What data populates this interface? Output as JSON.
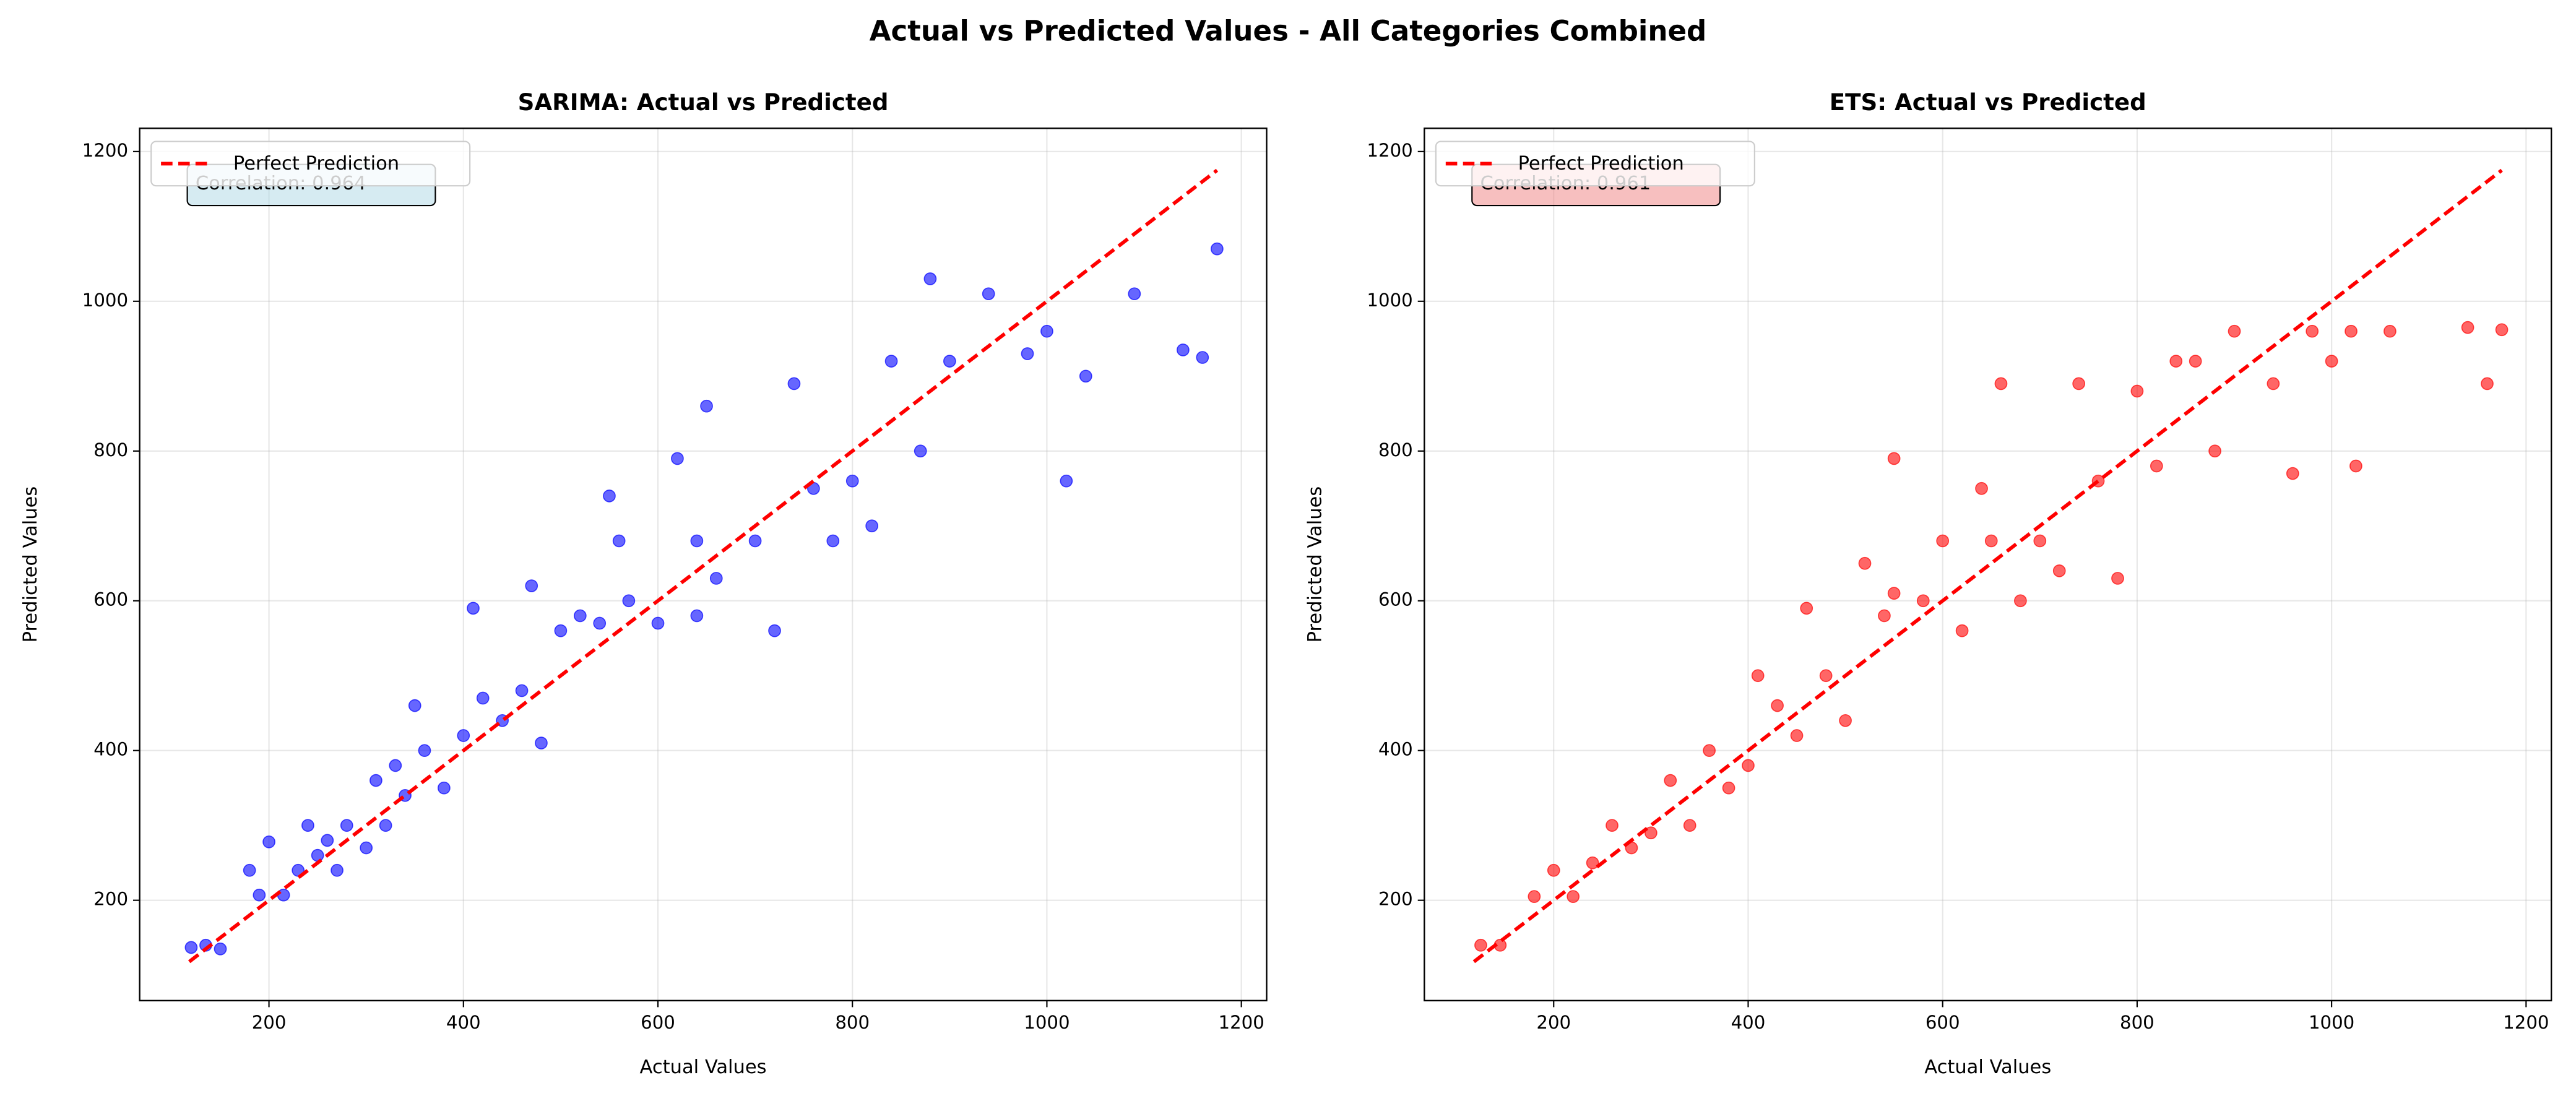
{
  "title": "Actual vs Predicted Values - All Categories Combined",
  "chart_data": [
    {
      "type": "scatter",
      "title": "SARIMA: Actual vs Predicted",
      "xlabel": "Actual Values",
      "ylabel": "Predicted Values",
      "xlim": [
        67,
        1226
      ],
      "ylim": [
        66,
        1231
      ],
      "xticks": [
        200,
        400,
        600,
        800,
        1000,
        1200
      ],
      "yticks": [
        200,
        400,
        600,
        800,
        1000,
        1200
      ],
      "grid": true,
      "legend": "upper left",
      "annotation": "Correlation: 0.964",
      "annotation_color": "#add8e6",
      "reference_line": {
        "name": "Perfect Prediction",
        "color": "#ff0000",
        "x": [
          118,
          1175
        ],
        "y": [
          118,
          1175
        ]
      },
      "series": [
        {
          "color": "#0000ff",
          "x": [
            120,
            135,
            150,
            180,
            190,
            200,
            215,
            230,
            240,
            250,
            260,
            270,
            280,
            300,
            310,
            320,
            330,
            340,
            350,
            360,
            380,
            400,
            410,
            420,
            440,
            460,
            470,
            480,
            500,
            520,
            540,
            550,
            570,
            600,
            620,
            640,
            650,
            660,
            700,
            720,
            740,
            760,
            780,
            800,
            820,
            840,
            870,
            880,
            900,
            940,
            980,
            1000,
            1020,
            1040,
            1090,
            1140,
            1160,
            1175,
            640,
            560
          ],
          "y": [
            137,
            140,
            135,
            240,
            207,
            278,
            207,
            240,
            300,
            260,
            280,
            240,
            300,
            270,
            360,
            300,
            380,
            340,
            460,
            400,
            350,
            420,
            590,
            470,
            440,
            480,
            620,
            410,
            560,
            580,
            570,
            740,
            600,
            570,
            790,
            680,
            860,
            630,
            680,
            560,
            890,
            750,
            680,
            760,
            700,
            920,
            800,
            1030,
            920,
            1010,
            930,
            960,
            760,
            900,
            1010,
            935,
            925,
            1070,
            580,
            680
          ]
        }
      ]
    },
    {
      "type": "scatter",
      "title": "ETS: Actual vs Predicted",
      "xlabel": "Actual Values",
      "ylabel": "Predicted Values",
      "xlim": [
        67,
        1226
      ],
      "ylim": [
        66,
        1231
      ],
      "xticks": [
        200,
        400,
        600,
        800,
        1000,
        1200
      ],
      "yticks": [
        200,
        400,
        600,
        800,
        1000,
        1200
      ],
      "grid": true,
      "legend": "upper left",
      "annotation": "Correlation: 0.961",
      "annotation_color": "#f08080",
      "reference_line": {
        "name": "Perfect Prediction",
        "color": "#ff0000",
        "x": [
          118,
          1175
        ],
        "y": [
          118,
          1175
        ]
      },
      "series": [
        {
          "color": "#ff0000",
          "x": [
            125,
            145,
            180,
            200,
            220,
            240,
            260,
            280,
            300,
            320,
            340,
            360,
            380,
            400,
            410,
            430,
            450,
            460,
            480,
            500,
            520,
            540,
            550,
            580,
            600,
            620,
            640,
            660,
            680,
            700,
            720,
            740,
            760,
            780,
            800,
            820,
            840,
            860,
            880,
            900,
            940,
            960,
            980,
            1000,
            1020,
            1025,
            1060,
            1140,
            1160,
            1175,
            550,
            650
          ],
          "y": [
            140,
            140,
            205,
            240,
            205,
            250,
            300,
            270,
            290,
            360,
            300,
            400,
            350,
            380,
            500,
            460,
            420,
            590,
            500,
            440,
            650,
            580,
            790,
            600,
            680,
            560,
            750,
            890,
            600,
            680,
            640,
            890,
            760,
            630,
            880,
            780,
            920,
            920,
            800,
            960,
            890,
            770,
            960,
            920,
            960,
            780,
            960,
            965,
            890,
            962,
            610,
            680
          ]
        }
      ]
    }
  ]
}
